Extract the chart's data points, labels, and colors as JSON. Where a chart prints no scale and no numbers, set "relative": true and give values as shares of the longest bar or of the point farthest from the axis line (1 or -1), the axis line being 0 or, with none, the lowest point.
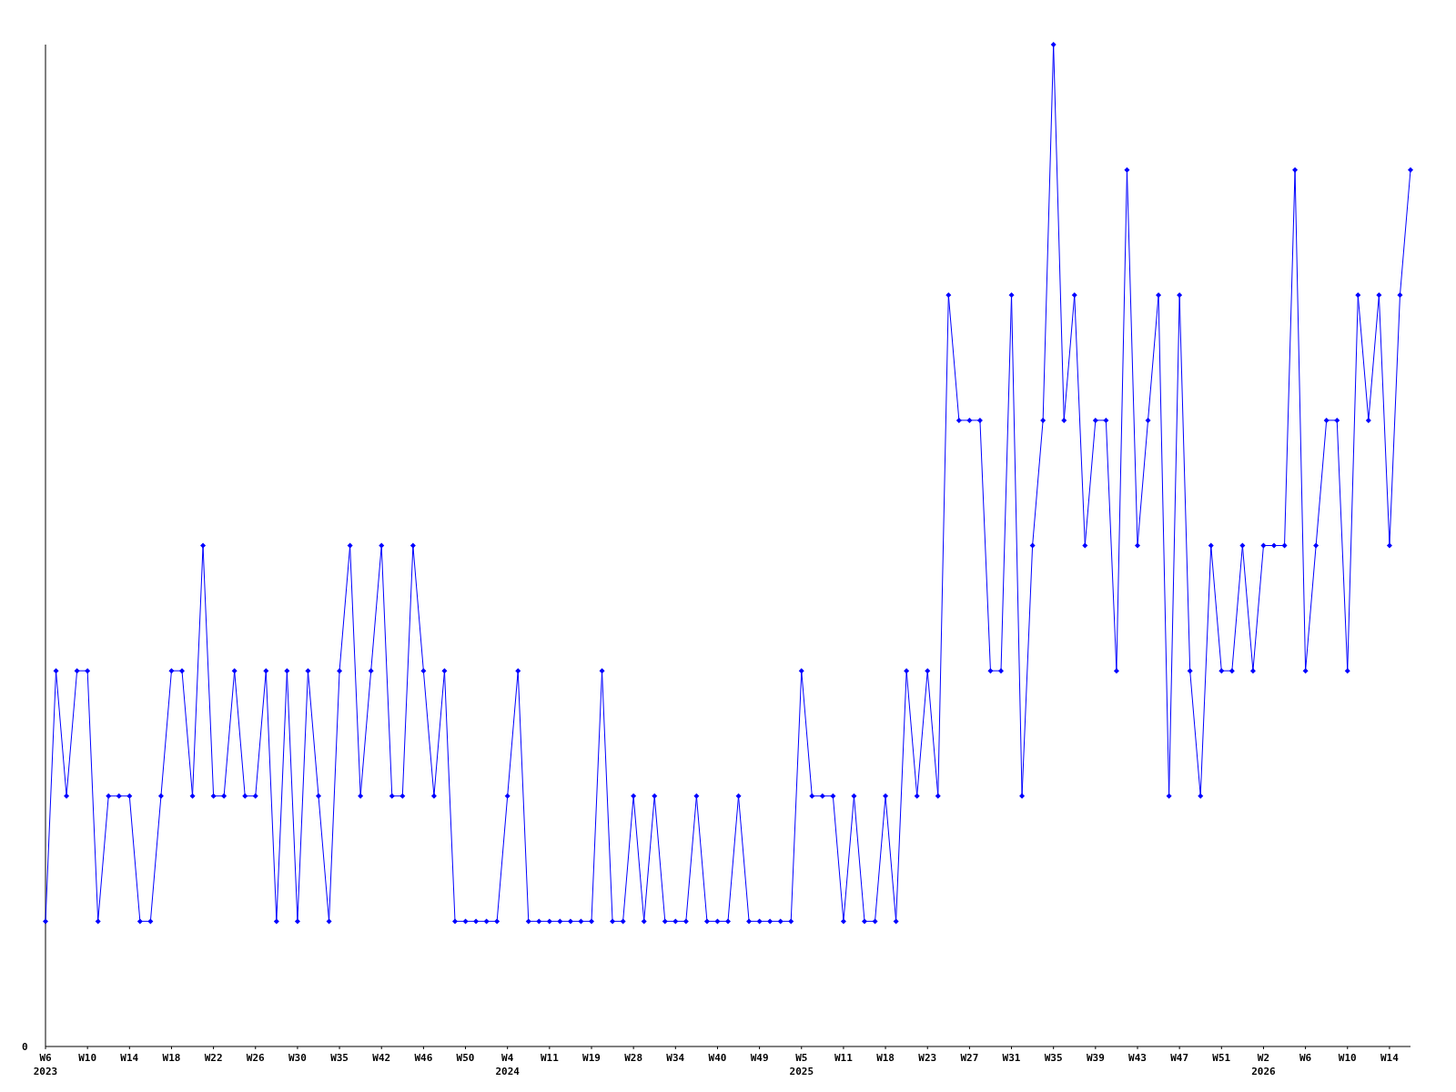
{
  "chart_data": {
    "type": "line",
    "relative": true,
    "marker": "diamond",
    "line_style": "solid",
    "annotations": [
      "0"
    ],
    "categories": [
      "W6\n2023",
      null,
      null,
      null,
      "W10",
      null,
      null,
      null,
      "W14",
      null,
      null,
      null,
      "W18",
      null,
      null,
      null,
      "W22",
      null,
      null,
      null,
      "W26",
      null,
      null,
      null,
      "W30",
      null,
      null,
      null,
      "W35",
      null,
      null,
      null,
      "W42",
      null,
      null,
      null,
      "W46",
      null,
      null,
      null,
      "W50",
      null,
      null,
      null,
      "W4\n2024",
      null,
      null,
      null,
      "W11",
      null,
      null,
      null,
      "W19",
      null,
      null,
      null,
      "W28",
      null,
      null,
      null,
      "W34",
      null,
      null,
      null,
      "W40",
      null,
      null,
      null,
      "W49",
      null,
      null,
      null,
      "W5\n2025",
      null,
      null,
      null,
      "W11",
      null,
      null,
      null,
      "W18",
      null,
      null,
      null,
      "W23",
      null,
      null,
      null,
      "W27",
      null,
      null,
      null,
      "W31",
      null,
      null,
      null,
      "W35",
      null,
      null,
      null,
      "W39",
      null,
      null,
      null,
      "W43",
      null,
      null,
      null,
      "W47",
      null,
      null,
      null,
      "W51",
      null,
      null,
      null,
      "W2\n2026",
      null,
      null,
      null,
      "W6",
      null,
      null,
      null,
      "W10",
      null,
      null,
      null,
      "W14",
      null,
      null
    ],
    "series": [
      {
        "color": "#0000ff",
        "values": [
          0.125,
          0.375,
          0.25,
          0.375,
          0.375,
          0.125,
          0.25,
          0.25,
          0.25,
          0.125,
          0.125,
          0.25,
          0.375,
          0.375,
          0.25,
          0.5,
          0.25,
          0.25,
          0.375,
          0.25,
          0.25,
          0.375,
          0.125,
          0.375,
          0.125,
          0.375,
          0.25,
          0.125,
          0.375,
          0.5,
          0.25,
          0.375,
          0.5,
          0.25,
          0.25,
          0.5,
          0.375,
          0.25,
          0.375,
          0.125,
          0.125,
          0.125,
          0.125,
          0.125,
          0.25,
          0.375,
          0.125,
          0.125,
          0.125,
          0.125,
          0.125,
          0.125,
          0.125,
          0.375,
          0.125,
          0.125,
          0.25,
          0.125,
          0.25,
          0.125,
          0.125,
          0.125,
          0.25,
          0.125,
          0.125,
          0.125,
          0.25,
          0.125,
          0.125,
          0.125,
          0.125,
          0.125,
          0.375,
          0.25,
          0.25,
          0.25,
          0.125,
          0.25,
          0.125,
          0.125,
          0.25,
          0.125,
          0.375,
          0.25,
          0.375,
          0.25,
          0.75,
          0.625,
          0.625,
          0.625,
          0.375,
          0.375,
          0.75,
          0.25,
          0.5,
          0.625,
          1,
          0.625,
          0.75,
          0.5,
          0.625,
          0.625,
          0.375,
          0.875,
          0.5,
          0.625,
          0.75,
          0.25,
          0.75,
          0.375,
          0.25,
          0.5,
          0.375,
          0.375,
          0.5,
          0.375,
          0.5,
          0.5,
          0.5,
          0.875,
          0.375,
          0.5,
          0.625,
          0.625,
          0.375,
          0.75,
          0.625,
          0.75,
          0.5,
          0.75,
          0.875
        ]
      }
    ]
  }
}
